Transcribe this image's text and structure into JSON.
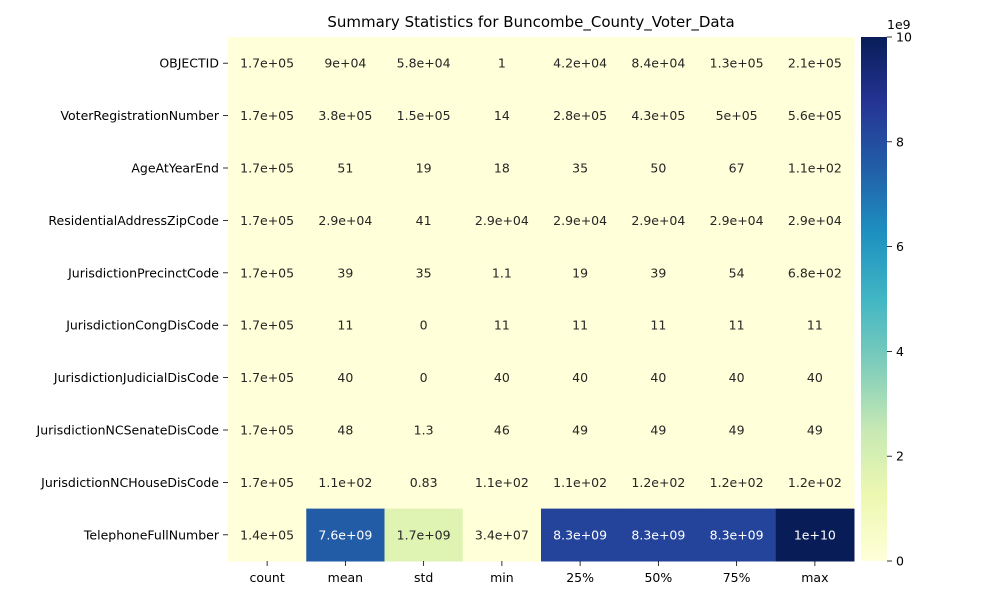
{
  "chart_data": {
    "type": "heatmap",
    "title": "Summary Statistics for Buncombe_County_Voter_Data",
    "columns": [
      "count",
      "mean",
      "std",
      "min",
      "25%",
      "50%",
      "75%",
      "max"
    ],
    "rows": [
      "OBJECTID",
      "VoterRegistrationNumber",
      "AgeAtYearEnd",
      "ResidentialAddressZipCode",
      "JurisdictionPrecinctCode",
      "JurisdictionCongDisCode",
      "JurisdictionJudicialDisCode",
      "JurisdictionNCSenateDisCode",
      "JurisdictionNCHouseDisCode",
      "TelephoneFullNumber"
    ],
    "values": [
      [
        170000,
        90000,
        58000,
        1,
        42000,
        84000,
        130000,
        210000
      ],
      [
        170000,
        380000,
        150000,
        14,
        280000,
        430000,
        500000,
        560000
      ],
      [
        170000,
        51,
        19,
        18,
        35,
        50,
        67,
        110
      ],
      [
        170000,
        29000,
        41,
        29000,
        29000,
        29000,
        29000,
        29000
      ],
      [
        170000,
        39,
        35,
        1.1,
        19,
        39,
        54,
        680
      ],
      [
        170000,
        11,
        0,
        11,
        11,
        11,
        11,
        11
      ],
      [
        170000,
        40,
        0,
        40,
        40,
        40,
        40,
        40
      ],
      [
        170000,
        48,
        1.3,
        46,
        49,
        49,
        49,
        49
      ],
      [
        170000,
        110,
        0.83,
        110,
        110,
        120,
        120,
        120
      ],
      [
        140000,
        7600000000,
        1700000000,
        34000000,
        8300000000,
        8300000000,
        8300000000,
        10000000000
      ]
    ],
    "annotations": [
      [
        "1.7e+05",
        "9e+04",
        "5.8e+04",
        "1",
        "4.2e+04",
        "8.4e+04",
        "1.3e+05",
        "2.1e+05"
      ],
      [
        "1.7e+05",
        "3.8e+05",
        "1.5e+05",
        "14",
        "2.8e+05",
        "4.3e+05",
        "5e+05",
        "5.6e+05"
      ],
      [
        "1.7e+05",
        "51",
        "19",
        "18",
        "35",
        "50",
        "67",
        "1.1e+02"
      ],
      [
        "1.7e+05",
        "2.9e+04",
        "41",
        "2.9e+04",
        "2.9e+04",
        "2.9e+04",
        "2.9e+04",
        "2.9e+04"
      ],
      [
        "1.7e+05",
        "39",
        "35",
        "1.1",
        "19",
        "39",
        "54",
        "6.8e+02"
      ],
      [
        "1.7e+05",
        "11",
        "0",
        "11",
        "11",
        "11",
        "11",
        "11"
      ],
      [
        "1.7e+05",
        "40",
        "0",
        "40",
        "40",
        "40",
        "40",
        "40"
      ],
      [
        "1.7e+05",
        "48",
        "1.3",
        "46",
        "49",
        "49",
        "49",
        "49"
      ],
      [
        "1.7e+05",
        "1.1e+02",
        "0.83",
        "1.1e+02",
        "1.1e+02",
        "1.2e+02",
        "1.2e+02",
        "1.2e+02"
      ],
      [
        "1.4e+05",
        "7.6e+09",
        "1.7e+09",
        "3.4e+07",
        "8.3e+09",
        "8.3e+09",
        "8.3e+09",
        "1e+10"
      ]
    ],
    "colormap": "YlGnBu",
    "colorbar": {
      "range": [
        0,
        10000000000
      ],
      "ticks": [
        0,
        2000000000,
        4000000000,
        6000000000,
        8000000000,
        10000000000
      ],
      "tick_labels": [
        "0",
        "2",
        "4",
        "6",
        "8",
        "10"
      ],
      "offset_label": "1e9"
    },
    "colors": {
      "ylgnbu": [
        "#ffffd9",
        "#edf8b1",
        "#c7e9b4",
        "#7fcdbb",
        "#41b6c4",
        "#1d91c0",
        "#225ea8",
        "#253494",
        "#081d58"
      ],
      "text_dark": "#262626",
      "text_light": "#ffffff"
    }
  }
}
